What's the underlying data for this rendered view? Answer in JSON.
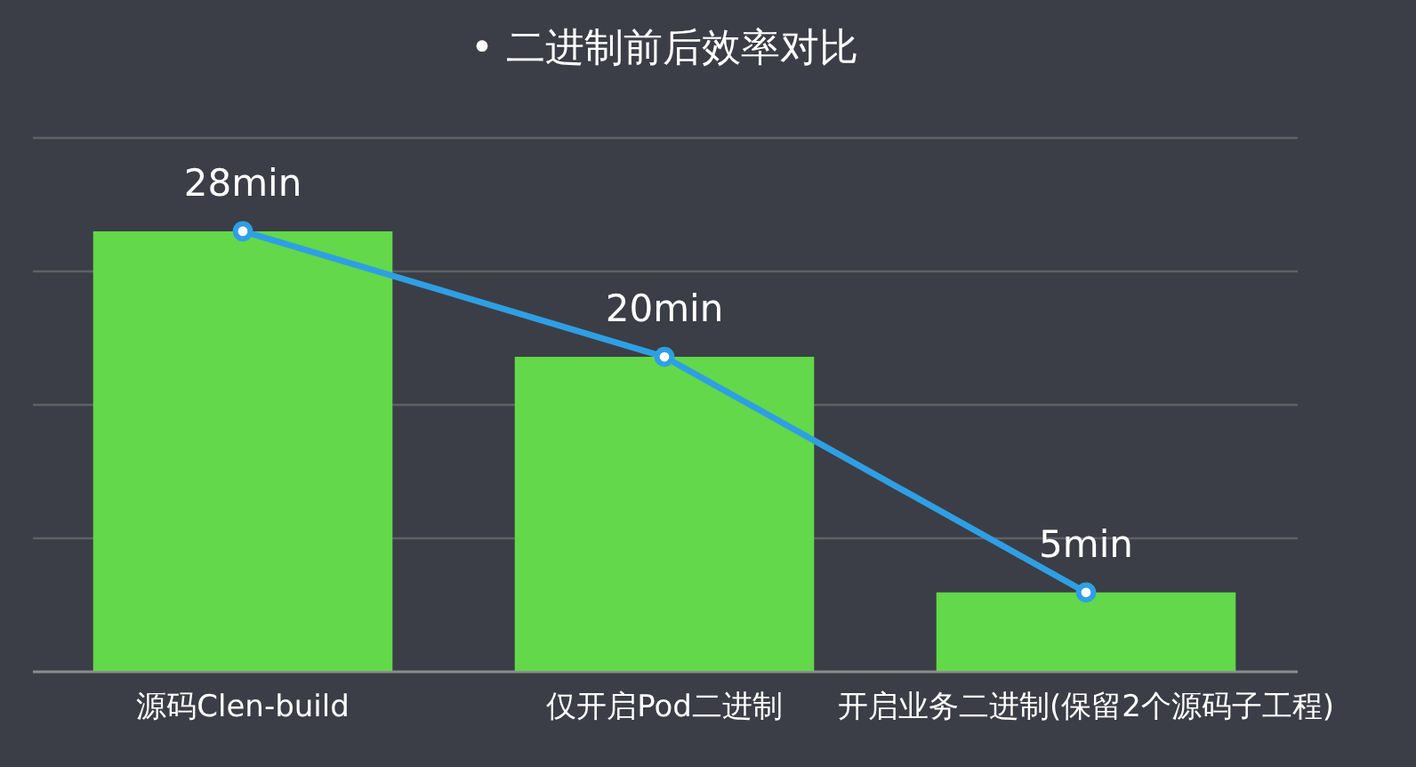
{
  "chart_data": {
    "type": "bar",
    "title": "• 二进制前后效率对比",
    "categories": [
      "源码Clen-build",
      "仅开启Pod二进制",
      "开启业务二进制(保留2个源码子工程)"
    ],
    "series": [
      {
        "color": "#62d84a",
        "values": [
          28,
          20,
          5
        ]
      },
      {
        "type": "line",
        "color": "#2f9fe4",
        "values": [
          28,
          20,
          5
        ],
        "value_labels": [
          "28min",
          "20min",
          "5min"
        ]
      }
    ],
    "ylim": [
      0,
      34
    ],
    "yticks": [
      {
        "value": 8.5,
        "label": null
      },
      {
        "value": 17,
        "label": null
      },
      {
        "value": 25.5,
        "label": null
      },
      {
        "value": 34,
        "label": null
      }
    ],
    "tick_labels": "x",
    "grid": "y",
    "marker": "circle",
    "line_style": "solid"
  }
}
